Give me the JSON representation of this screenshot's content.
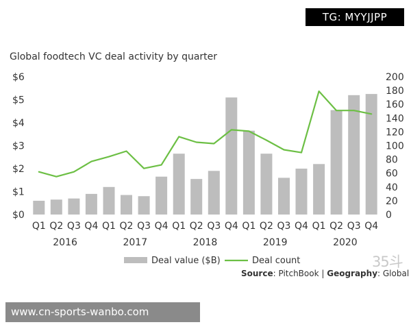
{
  "tag": "TG: MYYJJPP",
  "banner": "www.cn-sports-wanbo.com",
  "watermark": "35斗",
  "source": {
    "source_label": "Source",
    "source_value": ": PitchBook | ",
    "geo_label": "Geography",
    "geo_value": ": Global"
  },
  "colors": {
    "bar": "#bdbdbd",
    "line": "#6cbf44",
    "axis_text": "#333333"
  },
  "chart_data": {
    "type": "bar",
    "title": "Global foodtech VC deal activity by quarter",
    "categories": [
      "Q1",
      "Q2",
      "Q3",
      "Q4",
      "Q1",
      "Q2",
      "Q3",
      "Q4",
      "Q1",
      "Q2",
      "Q3",
      "Q4",
      "Q1",
      "Q2",
      "Q3",
      "Q4",
      "Q1",
      "Q2",
      "Q3",
      "Q4"
    ],
    "years": [
      "2016",
      "2017",
      "2018",
      "2019",
      "2020"
    ],
    "y_left": {
      "ticks": [
        "$0",
        "$1",
        "$2",
        "$3",
        "$4",
        "$5",
        "$6"
      ],
      "ylim": [
        0,
        6
      ]
    },
    "y_right": {
      "ticks": [
        "0",
        "20",
        "40",
        "60",
        "80",
        "100",
        "120",
        "140",
        "160",
        "180",
        "200"
      ],
      "ylim": [
        0,
        200
      ]
    },
    "series": [
      {
        "name": "Deal value ($B)",
        "kind": "bar",
        "axis": "left",
        "values": [
          0.6,
          0.65,
          0.7,
          0.9,
          1.2,
          0.85,
          0.8,
          1.65,
          2.65,
          1.55,
          1.9,
          5.1,
          3.65,
          2.65,
          1.6,
          2.0,
          2.2,
          4.55,
          5.2,
          5.25
        ]
      },
      {
        "name": "Deal count",
        "kind": "line",
        "axis": "right",
        "values": [
          62,
          55,
          62,
          77,
          84,
          92,
          67,
          72,
          113,
          105,
          103,
          123,
          121,
          108,
          94,
          90,
          179,
          151,
          151,
          146
        ]
      }
    ],
    "legend": [
      "Deal value ($B)",
      "Deal count"
    ]
  }
}
